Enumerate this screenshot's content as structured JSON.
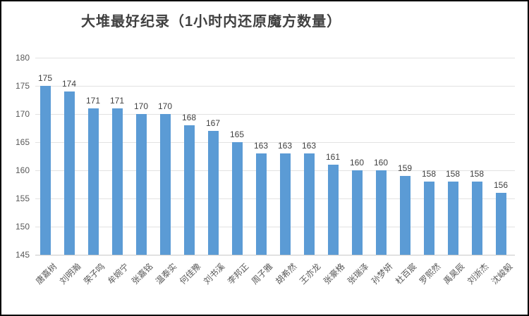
{
  "chart_data": {
    "type": "bar",
    "title": "大堆最好纪录（1小时内还原魔方数量）",
    "categories": [
      "唐嘉树",
      "刘明瀚",
      "荣子鸣",
      "牟婉宁",
      "张嘉铭",
      "温泰实",
      "何佳豫",
      "刘书溪",
      "李邦正",
      "周子雅",
      "胡希然",
      "王亦龙",
      "张豪格",
      "张瑞泽",
      "孙梦妍",
      "杜百宸",
      "罗熙然",
      "禹昊辰",
      "刘浙杰",
      "沈峻毅"
    ],
    "values": [
      175,
      174,
      171,
      171,
      170,
      170,
      168,
      167,
      165,
      163,
      163,
      163,
      161,
      160,
      160,
      159,
      158,
      158,
      158,
      156
    ],
    "xlabel": "",
    "ylabel": "",
    "ylim": [
      145,
      180
    ],
    "ytick_step": 5,
    "yticks": [
      145,
      150,
      155,
      160,
      165,
      170,
      175,
      180
    ],
    "grid": true,
    "legend_position": "none",
    "data_labels": true,
    "colors": {
      "bar": "#5b9bd5",
      "gridline": "#e2e2e2",
      "axis_line": "#c9c9c9",
      "value_label": "#404040",
      "axis_label": "#595959",
      "title": "#404040",
      "background": "#ffffff",
      "frame_border": "#000000"
    }
  }
}
